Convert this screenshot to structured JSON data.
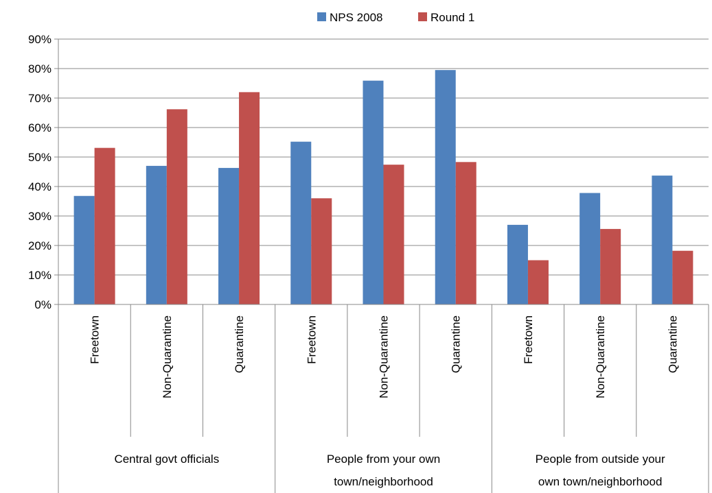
{
  "chart_data": {
    "type": "bar",
    "title": "",
    "xlabel": "",
    "ylabel": "",
    "ylim": [
      0,
      90
    ],
    "y_ticks": [
      "0%",
      "10%",
      "20%",
      "30%",
      "40%",
      "50%",
      "60%",
      "70%",
      "80%",
      "90%"
    ],
    "grid": true,
    "legend_position": "top-center",
    "groups": [
      {
        "label_lines": [
          "Central govt officials"
        ],
        "categories": [
          "Freetown",
          "Non-Quarantine",
          "Quarantine"
        ]
      },
      {
        "label_lines": [
          "People from your own",
          "town/neighborhood"
        ],
        "categories": [
          "Freetown",
          "Non-Quarantine",
          "Quarantine"
        ]
      },
      {
        "label_lines": [
          "People from outside your",
          "own town/neighborhood"
        ],
        "categories": [
          "Freetown",
          "Non-Quarantine",
          "Quarantine"
        ]
      }
    ],
    "series": [
      {
        "name": "NPS 2008",
        "color": "#4f81bd",
        "values": [
          36.8,
          47.0,
          46.3,
          55.2,
          75.9,
          79.5,
          27.0,
          37.8,
          43.7
        ]
      },
      {
        "name": "Round 1",
        "color": "#c0504d",
        "values": [
          53.1,
          66.2,
          72.0,
          36.0,
          47.4,
          48.3,
          15.0,
          25.6,
          18.2
        ]
      }
    ]
  }
}
